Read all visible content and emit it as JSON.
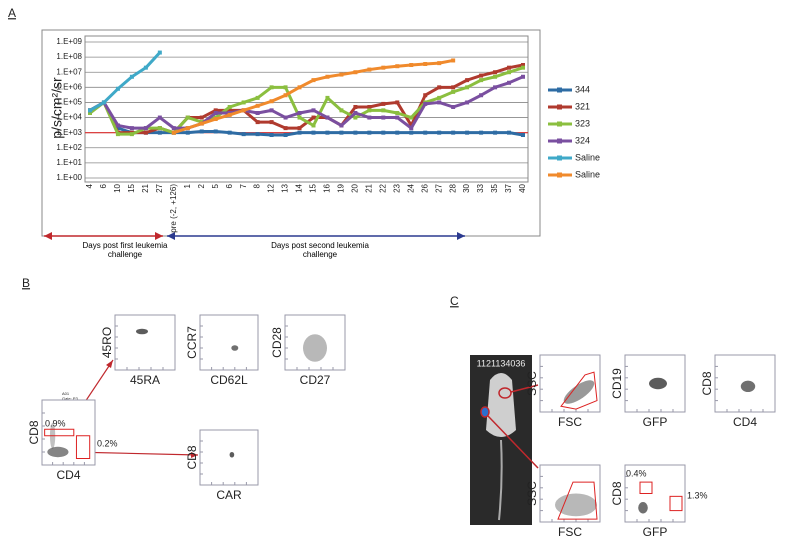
{
  "panel_labels": [
    "A",
    "B",
    "C"
  ],
  "chart_data": {
    "type": "line",
    "y_label": "p/s/cm²/sr",
    "categories": [
      "4",
      "6",
      "10",
      "15",
      "21",
      "27",
      "pre (-2, +126)",
      "1",
      "2",
      "5",
      "6",
      "7",
      "8",
      "12",
      "13",
      "14",
      "15",
      "16",
      "19",
      "20",
      "21",
      "22",
      "23",
      "24",
      "26",
      "27",
      "28",
      "30",
      "33",
      "35",
      "37",
      "40"
    ],
    "log_scale": true,
    "ylim": [
      1,
      1000000000
    ],
    "yticks": [
      {
        "value": 1,
        "label": "1.E+00"
      },
      {
        "value": 10,
        "label": "1.E+01"
      },
      {
        "value": 100,
        "label": "1.E+02"
      },
      {
        "value": 1000,
        "label": "1.E+03"
      },
      {
        "value": 10000,
        "label": "1.E+04"
      },
      {
        "value": 100000,
        "label": "1.E+05"
      },
      {
        "value": 1000000,
        "label": "1.E+06"
      },
      {
        "value": 10000000,
        "label": "1.E+07"
      },
      {
        "value": 100000000,
        "label": "1.E+08"
      },
      {
        "value": 1000000000,
        "label": "1.E+09"
      }
    ],
    "grid": true,
    "legend": "right",
    "reference_line": {
      "value": 1000,
      "color": "#e03030"
    },
    "annotations": [
      "Days post first leukemia challenge",
      "Days post second leukemia challenge"
    ],
    "series": [
      {
        "name": "344",
        "color": "#2e6ca4",
        "values": [
          30000,
          100000,
          2000,
          1000,
          1000,
          1000,
          1000,
          1000,
          1200,
          1200,
          1000,
          800,
          800,
          700,
          700,
          1000,
          1000,
          1000,
          1000,
          1000,
          1000,
          1000,
          1000,
          1000,
          1000,
          1000,
          1000,
          1000,
          1000,
          1000,
          1000,
          700
        ]
      },
      {
        "name": "321",
        "color": "#b03a2e",
        "values": [
          30000,
          100000,
          1000,
          1000,
          1000,
          2000,
          1000,
          10000,
          10000,
          30000,
          30000,
          30000,
          5000,
          5000,
          2000,
          2000,
          10000,
          10000,
          3000,
          50000,
          50000,
          80000,
          100000,
          3000,
          300000,
          1000000,
          1000000,
          3000000,
          6000000,
          10000000,
          20000000,
          30000000
        ]
      },
      {
        "name": "323",
        "color": "#8bbf3f",
        "values": [
          20000,
          100000,
          800,
          800,
          2000,
          2000,
          1000,
          10000,
          5000,
          10000,
          50000,
          100000,
          200000,
          1000000,
          1000000,
          10000,
          3000,
          200000,
          30000,
          10000,
          30000,
          30000,
          20000,
          10000,
          100000,
          200000,
          500000,
          1000000,
          3000000,
          5000000,
          10000000,
          20000000
        ]
      },
      {
        "name": "324",
        "color": "#7a4fa0",
        "values": [
          30000,
          100000,
          3000,
          2000,
          2000,
          10000,
          2000,
          2000,
          4000,
          20000,
          20000,
          30000,
          20000,
          30000,
          10000,
          20000,
          30000,
          10000,
          3000,
          20000,
          10000,
          10000,
          10000,
          2000,
          80000,
          100000,
          50000,
          100000,
          300000,
          1000000,
          2000000,
          5000000
        ]
      },
      {
        "name": "Saline",
        "color": "#3fa9c8",
        "values": [
          30000,
          100000,
          800000,
          5000000,
          20000000,
          200000000,
          null,
          null,
          null,
          null,
          null,
          null,
          null,
          null,
          null,
          null,
          null,
          null,
          null,
          null,
          null,
          null,
          null,
          null,
          null,
          null,
          null,
          null,
          null,
          null,
          null,
          null
        ]
      },
      {
        "name": "Saline",
        "color": "#f08a2c",
        "values": [
          null,
          null,
          null,
          null,
          null,
          null,
          1000,
          2000,
          4000,
          8000,
          15000,
          30000,
          60000,
          120000,
          300000,
          1000000,
          3000000,
          5000000,
          7000000,
          10000000,
          15000000,
          20000000,
          25000000,
          30000000,
          35000000,
          40000000,
          60000000,
          null,
          null,
          null,
          null,
          null
        ]
      }
    ]
  },
  "panel_b": {
    "gate_header": [
      "A01",
      "Gate: P3"
    ],
    "plots": [
      {
        "y_label": "CD8",
        "x_label": "CD4",
        "gate_labels": [
          "0.9%",
          "0.2%"
        ]
      },
      {
        "y_label": "45RO",
        "x_label": "45RA"
      },
      {
        "y_label": "CCR7",
        "x_label": "CD62L"
      },
      {
        "y_label": "CD28",
        "x_label": "CD27"
      },
      {
        "y_label": "CD8",
        "x_label": "CAR"
      }
    ]
  },
  "panel_c": {
    "image_label": "1121134036",
    "plots": [
      {
        "y_label": "SSC",
        "x_label": "FSC"
      },
      {
        "y_label": "CD19",
        "x_label": "GFP"
      },
      {
        "y_label": "CD8",
        "x_label": "CD4"
      },
      {
        "y_label": "SSC",
        "x_label": "FSC"
      },
      {
        "y_label": "CD8",
        "x_label": "GFP",
        "gate_labels": [
          "0.4%",
          "1.3%"
        ]
      }
    ]
  }
}
